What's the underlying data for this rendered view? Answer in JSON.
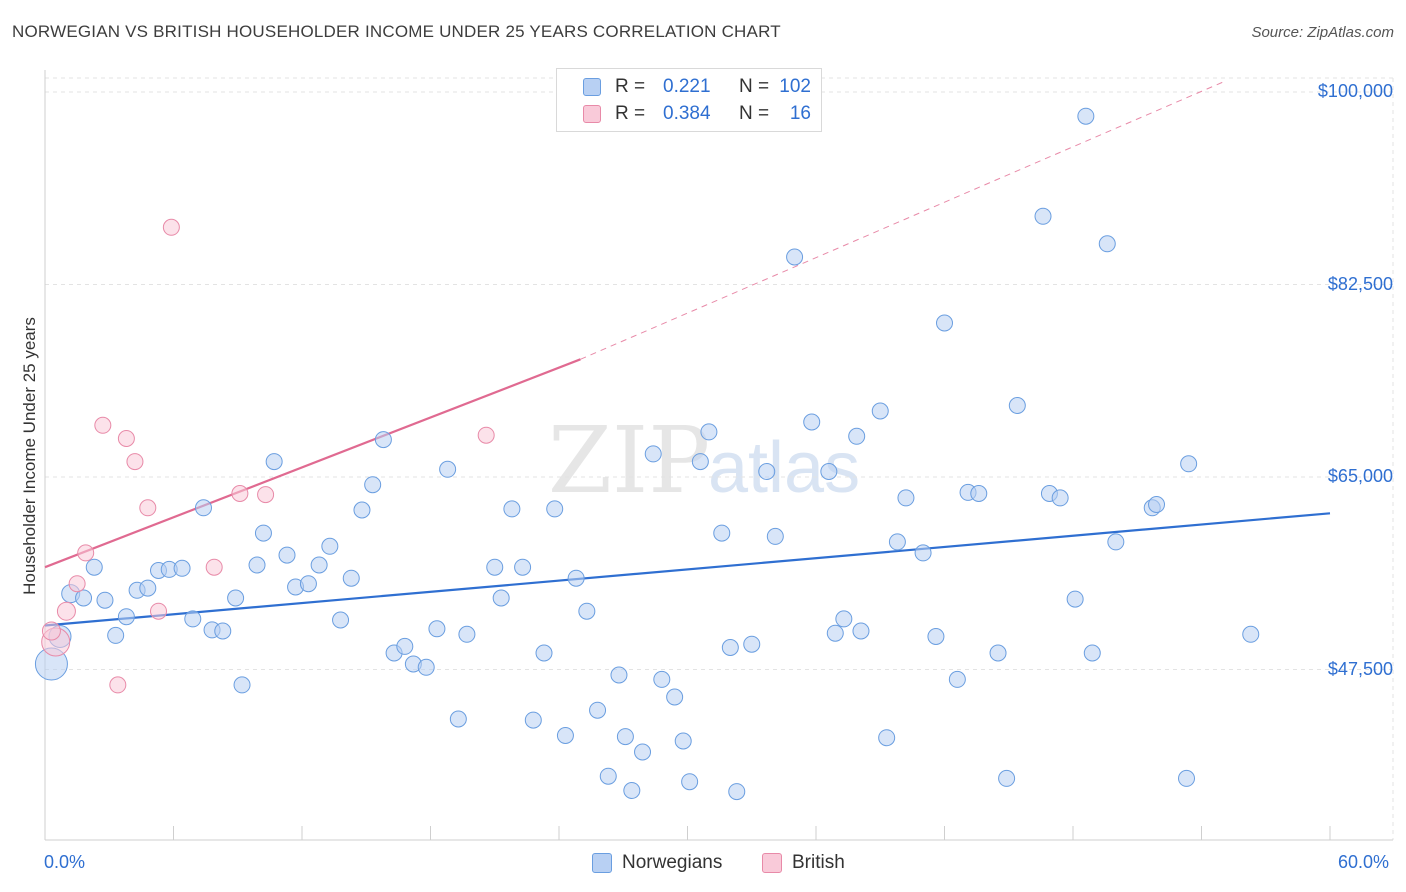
{
  "title": "NORWEGIAN VS BRITISH HOUSEHOLDER INCOME UNDER 25 YEARS CORRELATION CHART",
  "source": "Source: ZipAtlas.com",
  "watermark": {
    "zip": "ZIP",
    "atlas": "atlas"
  },
  "colors": {
    "blue_fill": "#b8d0f3",
    "blue_stroke": "#6a9ee0",
    "blue_line": "#2f6fd1",
    "pink_fill": "#f9cad9",
    "pink_stroke": "#e88aa8",
    "pink_line": "#e06a91",
    "grid": "#e3e3e3",
    "axis_text": "#2f6fd1"
  },
  "legend": {
    "rows": [
      {
        "r_label": "R =",
        "r_value": "0.221",
        "n_label": "N =",
        "n_value": "102",
        "series": "blue"
      },
      {
        "r_label": "R =",
        "r_value": "0.384",
        "n_label": "N =",
        "n_value": "16",
        "series": "pink"
      }
    ]
  },
  "bottom_legend": {
    "norwegians": "Norwegians",
    "british": "British"
  },
  "chart_data": {
    "type": "scatter",
    "title": "NORWEGIAN VS BRITISH HOUSEHOLDER INCOME UNDER 25 YEARS CORRELATION CHART",
    "xlabel": "",
    "ylabel": "Householder Income Under 25 years",
    "x_tick_labels": [
      "0.0%",
      "60.0%"
    ],
    "y_tick_labels": [
      "$100,000",
      "$82,500",
      "$65,000",
      "$47,500"
    ],
    "xlim": [
      0,
      60
    ],
    "ylim": [
      32000,
      102000
    ],
    "y_ticks": [
      100000,
      82500,
      65000,
      47500
    ],
    "grid": true,
    "legend_position": "top-center",
    "series": [
      {
        "name": "Norwegians",
        "color": "#6a9ee0",
        "r": 0.221,
        "n": 102,
        "trend": {
          "x": [
            0,
            60
          ],
          "y": [
            51500,
            61700
          ],
          "style": "solid"
        },
        "points": [
          [
            0.3,
            48000,
            16
          ],
          [
            0.7,
            50500,
            11
          ],
          [
            1.2,
            54400,
            9
          ],
          [
            1.8,
            54000,
            8
          ],
          [
            2.3,
            56800,
            8
          ],
          [
            2.8,
            53800,
            8
          ],
          [
            3.3,
            50600,
            8
          ],
          [
            3.8,
            52300,
            8
          ],
          [
            4.3,
            54700,
            8
          ],
          [
            4.8,
            54900,
            8
          ],
          [
            5.3,
            56500,
            8
          ],
          [
            5.8,
            56600,
            8
          ],
          [
            6.4,
            56700,
            8
          ],
          [
            6.9,
            52100,
            8
          ],
          [
            7.4,
            62200,
            8
          ],
          [
            7.8,
            51100,
            8
          ],
          [
            8.3,
            51000,
            8
          ],
          [
            8.9,
            54000,
            8
          ],
          [
            9.2,
            46100,
            8
          ],
          [
            9.9,
            57000,
            8
          ],
          [
            10.2,
            59900,
            8
          ],
          [
            10.7,
            66400,
            8
          ],
          [
            11.3,
            57900,
            8
          ],
          [
            11.7,
            55000,
            8
          ],
          [
            12.3,
            55300,
            8
          ],
          [
            12.8,
            57000,
            8
          ],
          [
            13.3,
            58700,
            8
          ],
          [
            13.8,
            52000,
            8
          ],
          [
            14.3,
            55800,
            8
          ],
          [
            14.8,
            62000,
            8
          ],
          [
            15.3,
            64300,
            8
          ],
          [
            15.8,
            68400,
            8
          ],
          [
            16.3,
            49000,
            8
          ],
          [
            16.8,
            49600,
            8
          ],
          [
            17.2,
            48000,
            8
          ],
          [
            17.8,
            47700,
            8
          ],
          [
            18.3,
            51200,
            8
          ],
          [
            18.8,
            65700,
            8
          ],
          [
            19.3,
            43000,
            8
          ],
          [
            19.7,
            50700,
            8
          ],
          [
            21.0,
            56800,
            8
          ],
          [
            21.3,
            54000,
            8
          ],
          [
            21.8,
            62100,
            8
          ],
          [
            22.3,
            56800,
            8
          ],
          [
            22.8,
            42900,
            8
          ],
          [
            23.3,
            49000,
            8
          ],
          [
            23.8,
            62100,
            8
          ],
          [
            24.3,
            41500,
            8
          ],
          [
            24.8,
            55800,
            8
          ],
          [
            25.3,
            52800,
            8
          ],
          [
            25.8,
            43800,
            8
          ],
          [
            26.3,
            37800,
            8
          ],
          [
            26.8,
            47000,
            8
          ],
          [
            27.1,
            41400,
            8
          ],
          [
            27.4,
            36500,
            8
          ],
          [
            27.9,
            40000,
            8
          ],
          [
            28.4,
            67100,
            8
          ],
          [
            28.8,
            46600,
            8
          ],
          [
            29.4,
            45000,
            8
          ],
          [
            29.8,
            41000,
            8
          ],
          [
            30.1,
            37300,
            8
          ],
          [
            30.6,
            66400,
            8
          ],
          [
            31.0,
            69100,
            8
          ],
          [
            31.6,
            59900,
            8
          ],
          [
            32.0,
            49500,
            8
          ],
          [
            32.3,
            36400,
            8
          ],
          [
            33.0,
            49800,
            8
          ],
          [
            33.7,
            65500,
            8
          ],
          [
            34.1,
            59600,
            8
          ],
          [
            35.0,
            85000,
            8
          ],
          [
            35.8,
            70000,
            8
          ],
          [
            36.6,
            65500,
            8
          ],
          [
            36.9,
            50800,
            8
          ],
          [
            37.3,
            52100,
            8
          ],
          [
            37.9,
            68700,
            8
          ],
          [
            38.1,
            51000,
            8
          ],
          [
            39.0,
            71000,
            8
          ],
          [
            39.3,
            41300,
            8
          ],
          [
            39.8,
            59100,
            8
          ],
          [
            40.2,
            63100,
            8
          ],
          [
            41.0,
            58100,
            8
          ],
          [
            41.6,
            50500,
            8
          ],
          [
            42.0,
            79000,
            8
          ],
          [
            42.6,
            46600,
            8
          ],
          [
            43.1,
            63600,
            8
          ],
          [
            43.6,
            63500,
            8
          ],
          [
            44.5,
            49000,
            8
          ],
          [
            44.9,
            37600,
            8
          ],
          [
            45.4,
            71500,
            8
          ],
          [
            46.6,
            88700,
            8
          ],
          [
            46.9,
            63500,
            8
          ],
          [
            47.4,
            63100,
            8
          ],
          [
            48.1,
            53900,
            8
          ],
          [
            48.6,
            97800,
            8
          ],
          [
            48.9,
            49000,
            8
          ],
          [
            49.6,
            86200,
            8
          ],
          [
            50.0,
            59100,
            8
          ],
          [
            51.7,
            62200,
            8
          ],
          [
            51.9,
            62500,
            8
          ],
          [
            53.3,
            37600,
            8
          ],
          [
            53.4,
            66200,
            8
          ],
          [
            56.3,
            50700,
            8
          ]
        ]
      },
      {
        "name": "British",
        "color": "#e88aa8",
        "r": 0.384,
        "n": 16,
        "trend": {
          "x": [
            0,
            25
          ],
          "y": [
            56800,
            75700
          ],
          "style": "solid",
          "extended": {
            "x": [
              25,
              55
            ],
            "y": [
              75700,
              100900
            ],
            "style": "dashed"
          }
        },
        "points": [
          [
            0.5,
            50000,
            14
          ],
          [
            1.0,
            52800,
            9
          ],
          [
            1.5,
            55300,
            8
          ],
          [
            1.9,
            58100,
            8
          ],
          [
            2.7,
            69700,
            8
          ],
          [
            3.4,
            46100,
            8
          ],
          [
            3.8,
            68500,
            8
          ],
          [
            4.2,
            66400,
            8
          ],
          [
            4.8,
            62200,
            8
          ],
          [
            5.3,
            52800,
            8
          ],
          [
            5.9,
            87700,
            8
          ],
          [
            7.9,
            56800,
            8
          ],
          [
            9.1,
            63500,
            8
          ],
          [
            10.3,
            63400,
            8
          ],
          [
            20.6,
            68800,
            8
          ],
          [
            0.3,
            51000,
            9
          ]
        ]
      }
    ]
  }
}
